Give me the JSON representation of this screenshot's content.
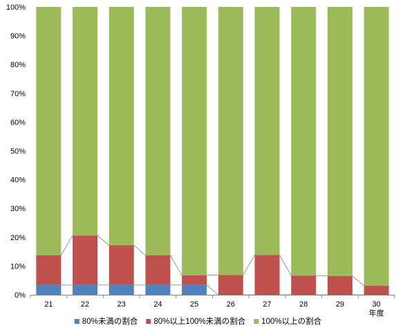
{
  "chart_data": {
    "type": "bar",
    "stacked": true,
    "percent_stacked": true,
    "categories": [
      "21",
      "22",
      "23",
      "24",
      "25",
      "26",
      "27",
      "28",
      "29",
      "30"
    ],
    "x_unit_label": "年度",
    "yticks": [
      "0%",
      "10%",
      "20%",
      "30%",
      "40%",
      "50%",
      "60%",
      "70%",
      "80%",
      "90%",
      "100%"
    ],
    "ylim": [
      0,
      100
    ],
    "series_lines": true,
    "legend_position": "bottom",
    "series": [
      {
        "name": "80%未満の割合",
        "color": "#4F81BD",
        "values": [
          3.4,
          3.4,
          3.4,
          3.4,
          3.4,
          0,
          0,
          0,
          0,
          0
        ]
      },
      {
        "name": "80%以上100%未満の割合",
        "color": "#C0504D",
        "values": [
          10.3,
          17.2,
          13.8,
          10.3,
          3.4,
          6.9,
          13.8,
          6.7,
          6.5,
          3.2
        ]
      },
      {
        "name": "100%以上の割合",
        "color": "#9BBB59",
        "values": [
          86.3,
          79.4,
          82.8,
          86.3,
          93.2,
          93.1,
          86.2,
          93.3,
          93.5,
          96.8
        ]
      }
    ]
  }
}
